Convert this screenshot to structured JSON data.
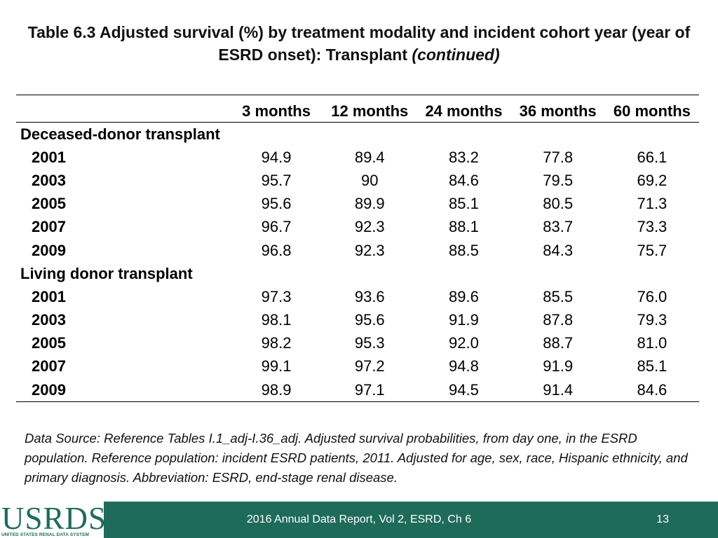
{
  "title": {
    "main": "Table 6.3  Adjusted survival (%) by treatment modality and incident cohort year (year of ESRD onset): Transplant",
    "continued": "(continued)"
  },
  "table": {
    "headers": [
      "",
      "3 months",
      "12 months",
      "24 months",
      "36 months",
      "60 months"
    ],
    "sections": [
      {
        "label": "Deceased-donor transplant",
        "rows": [
          {
            "year": "2001",
            "values": [
              "94.9",
              "89.4",
              "83.2",
              "77.8",
              "66.1"
            ]
          },
          {
            "year": "2003",
            "values": [
              "95.7",
              "90",
              "84.6",
              "79.5",
              "69.2"
            ]
          },
          {
            "year": "2005",
            "values": [
              "95.6",
              "89.9",
              "85.1",
              "80.5",
              "71.3"
            ]
          },
          {
            "year": "2007",
            "values": [
              "96.7",
              "92.3",
              "88.1",
              "83.7",
              "73.3"
            ]
          },
          {
            "year": "2009",
            "values": [
              "96.8",
              "92.3",
              "88.5",
              "84.3",
              "75.7"
            ]
          }
        ]
      },
      {
        "label": "Living donor transplant",
        "rows": [
          {
            "year": "2001",
            "values": [
              "97.3",
              "93.6",
              "89.6",
              "85.5",
              "76.0"
            ]
          },
          {
            "year": "2003",
            "values": [
              "98.1",
              "95.6",
              "91.9",
              "87.8",
              "79.3"
            ]
          },
          {
            "year": "2005",
            "values": [
              "98.2",
              "95.3",
              "92.0",
              "88.7",
              "81.0"
            ]
          },
          {
            "year": "2007",
            "values": [
              "99.1",
              "97.2",
              "94.8",
              "91.9",
              "85.1"
            ]
          },
          {
            "year": "2009",
            "values": [
              "98.9",
              "97.1",
              "94.5",
              "91.4",
              "84.6"
            ]
          }
        ]
      }
    ]
  },
  "note": "Data Source: Reference Tables I.1_adj-I.36_adj. Adjusted survival probabilities, from day one, in the ESRD population. Reference population: incident ESRD patients, 2011. Adjusted for age, sex, race, Hispanic ethnicity, and primary diagnosis. Abbreviation: ESRD, end-stage renal disease.",
  "footer": {
    "logo_text": "USRDS",
    "logo_subtitle": "UNITED STATES RENAL DATA SYSTEM",
    "report": "2016 Annual Data Report, Vol 2, ESRD, Ch 6",
    "page": "13"
  },
  "colors": {
    "footer_bg": "#1f6b5b",
    "logo_green": "#1f6b5b"
  }
}
